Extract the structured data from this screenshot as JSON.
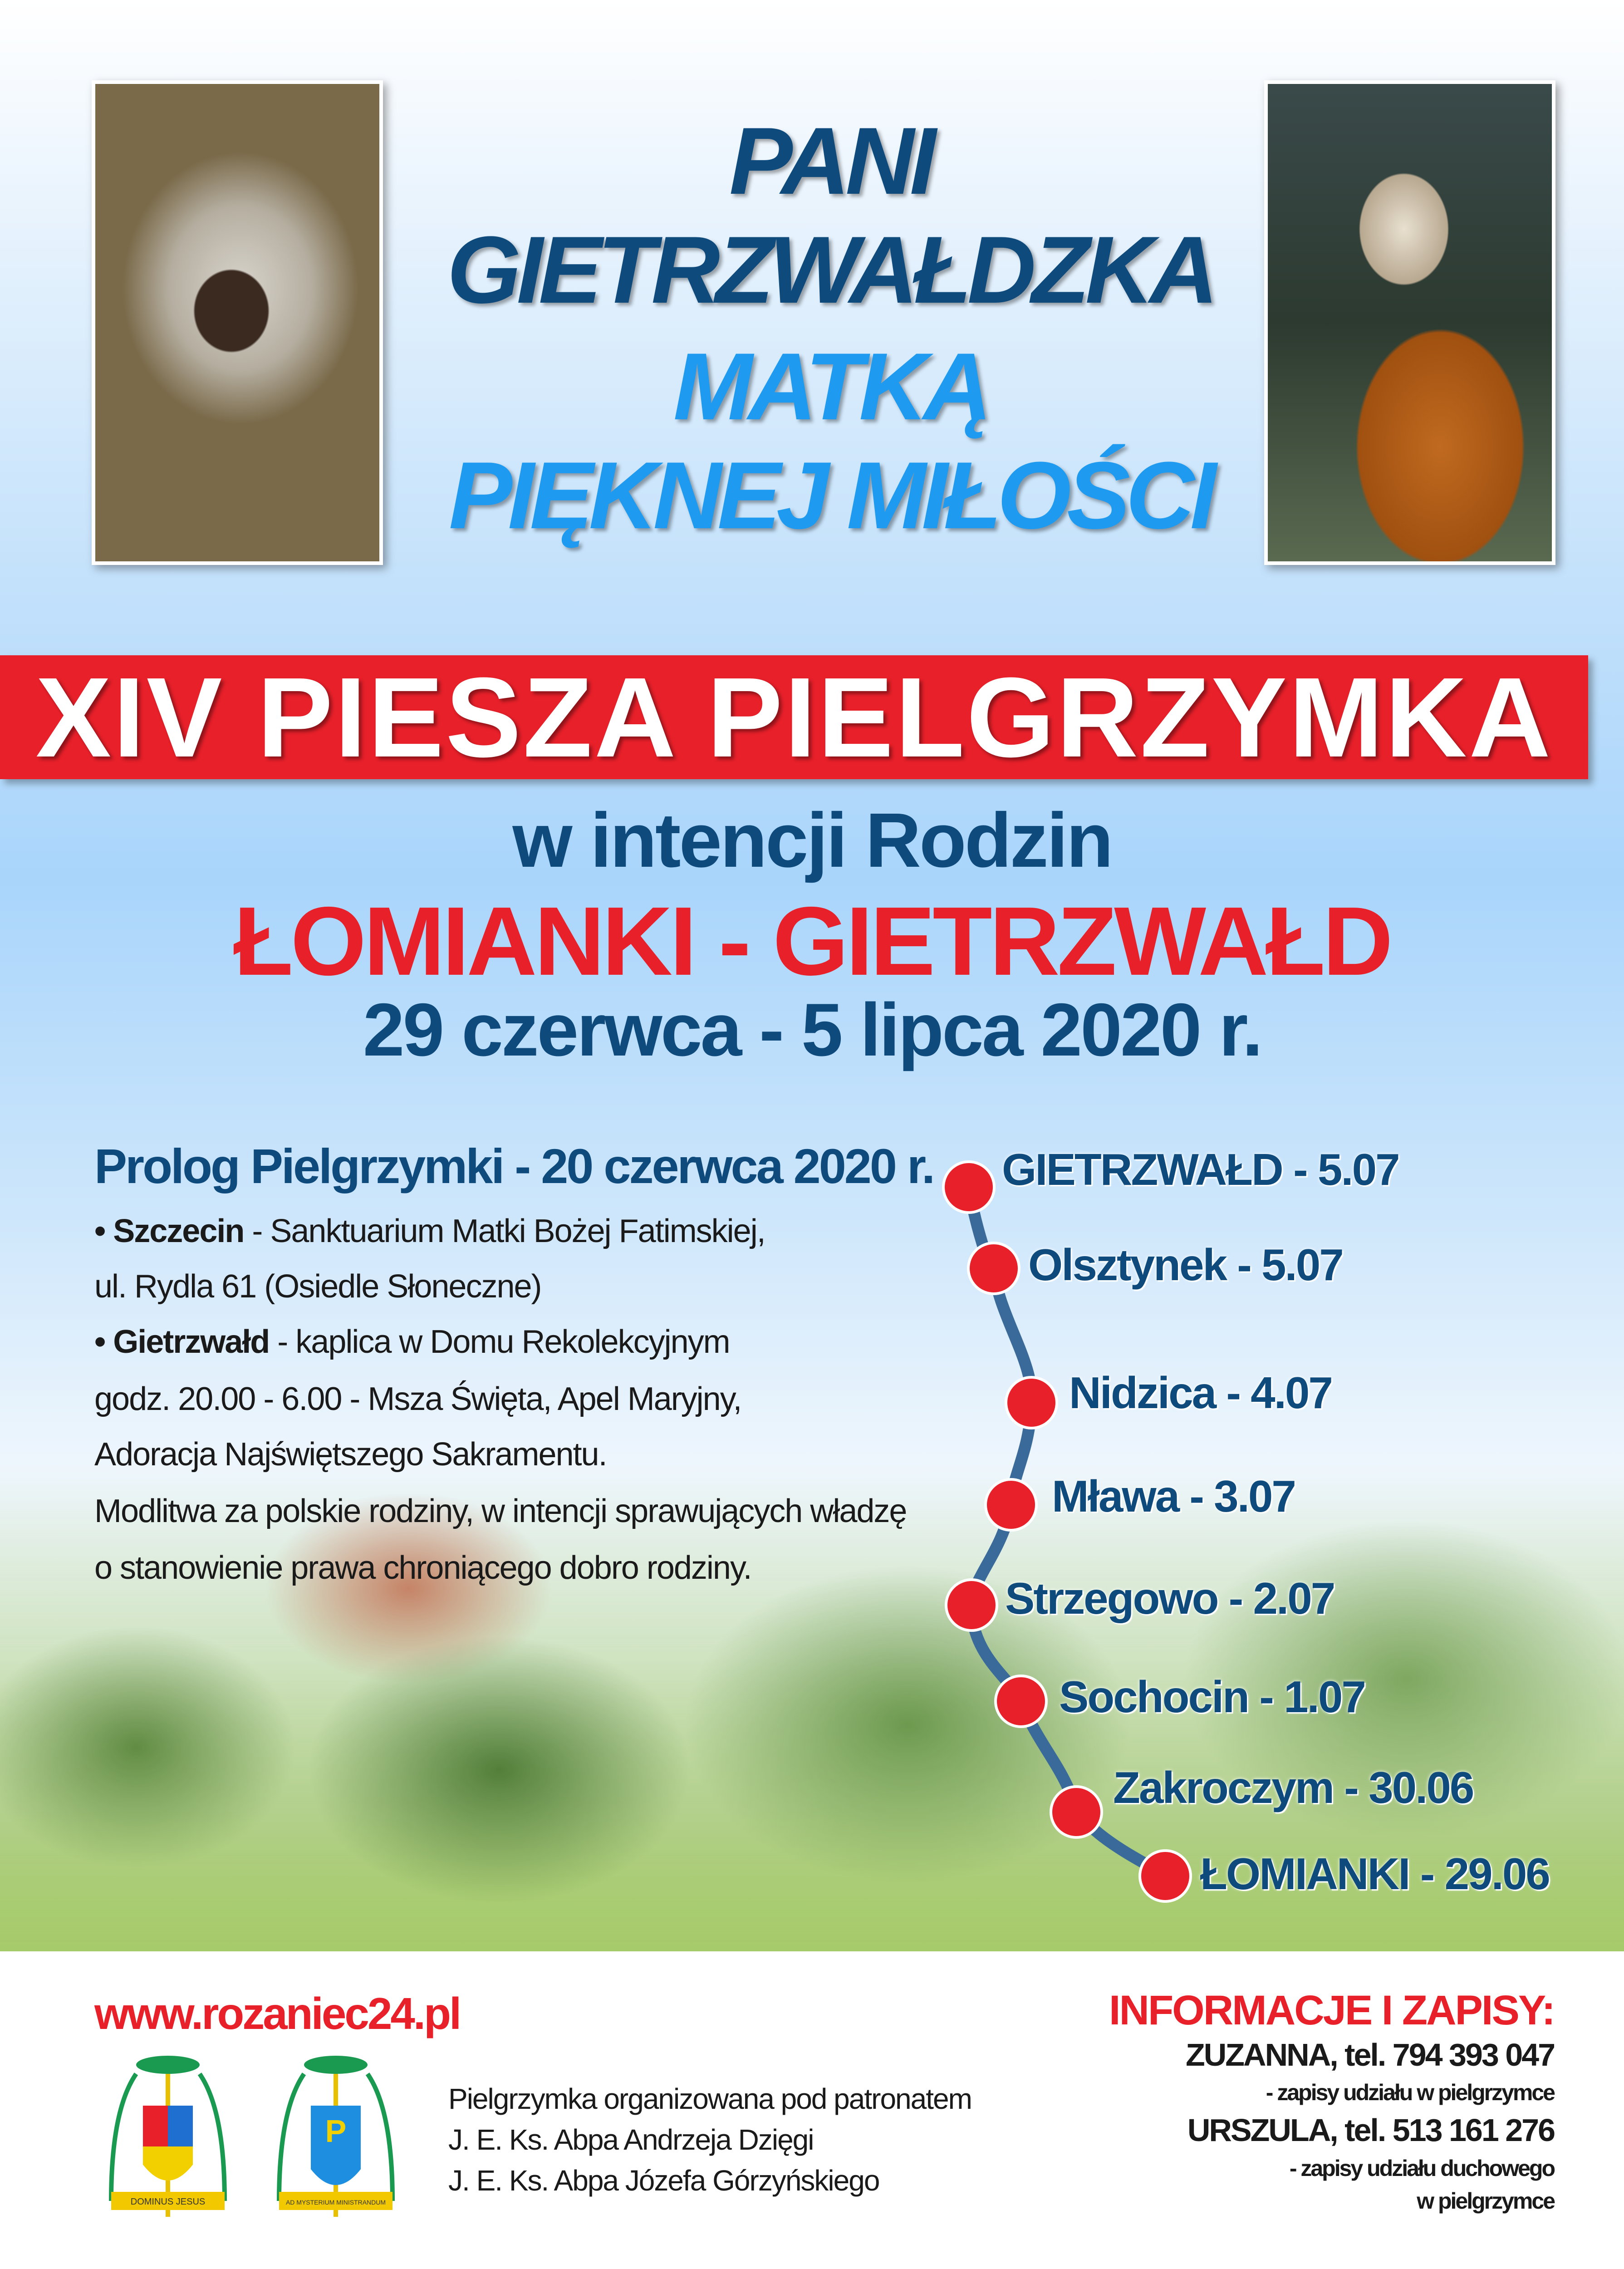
{
  "header": {
    "title_line1": "PANI",
    "title_line2": "GIETRZWAŁDZKA",
    "title_line3": "MATKĄ",
    "title_line4": "PIĘKNEJ MIŁOŚCI",
    "left_image": "Matka Boża Gietrzwałdzka icon",
    "right_image": "Saint Joseph painting"
  },
  "banner": {
    "title": "XIV PIESZA PIELGRZYMKA",
    "subtitle": "w intencji Rodzin",
    "route": "ŁOMIANKI - GIETRZWAŁD",
    "dates": "29 czerwca - 5 lipca 2020 r."
  },
  "prolog": {
    "heading": "Prolog Pielgrzymki - 20 czerwca 2020 r.",
    "lines": [
      {
        "bold": "• Szczecin",
        "text": " - Sanktuarium Matki Bożej Fatimskiej,"
      },
      {
        "bold": "",
        "text": "ul. Rydla 61 (Osiedle Słoneczne)"
      },
      {
        "bold": "• Gietrzwałd",
        "text": " - kaplica w Domu Rekolekcyjnym"
      },
      {
        "bold": "",
        "text": "godz. 20.00 - 6.00 - Msza Święta, Apel Maryjny,"
      },
      {
        "bold": "",
        "text": "Adoracja Najświętszego Sakramentu."
      },
      {
        "bold": "",
        "text": "Modlitwa za polskie rodziny, w intencji sprawujących władzę"
      },
      {
        "bold": "",
        "text": "o stanowienie prawa chroniącego dobro rodziny."
      }
    ]
  },
  "route_stops": [
    "GIETRZWAŁD - 5.07",
    "Olsztynek - 5.07",
    "Nidzica - 4.07",
    "Mława - 3.07",
    "Strzegowo - 2.07",
    "Sochocin - 1.07",
    "Zakroczym - 30.06",
    "ŁOMIANKI - 29.06"
  ],
  "colors": {
    "red": "#e8202a",
    "dark_blue": "#0e4a7c",
    "light_blue": "#1e9bf0",
    "route_line": "#3a6a9a"
  },
  "footer": {
    "website": "www.rozaniec24.pl",
    "patronage": [
      "Pielgrzymka organizowana pod patronatem",
      "J. E. Ks. Abpa Andrzeja Dzięgi",
      "J. E. Ks. Abpa Józefa Górzyńskiego"
    ],
    "coat_mottos": [
      "DOMINUS JESUS",
      "AD MYSTERIUM MINISTRANDUM"
    ],
    "info_heading": "INFORMACJE I ZAPISY:",
    "contact1": "ZUZANNA, tel. 794 393 047",
    "contact1_note": "- zapisy udziału w pielgrzymce",
    "contact2": "URSZULA, tel. 513 161 276",
    "contact2_note1": "- zapisy udziału duchowego",
    "contact2_note2": "w pielgrzymce"
  }
}
